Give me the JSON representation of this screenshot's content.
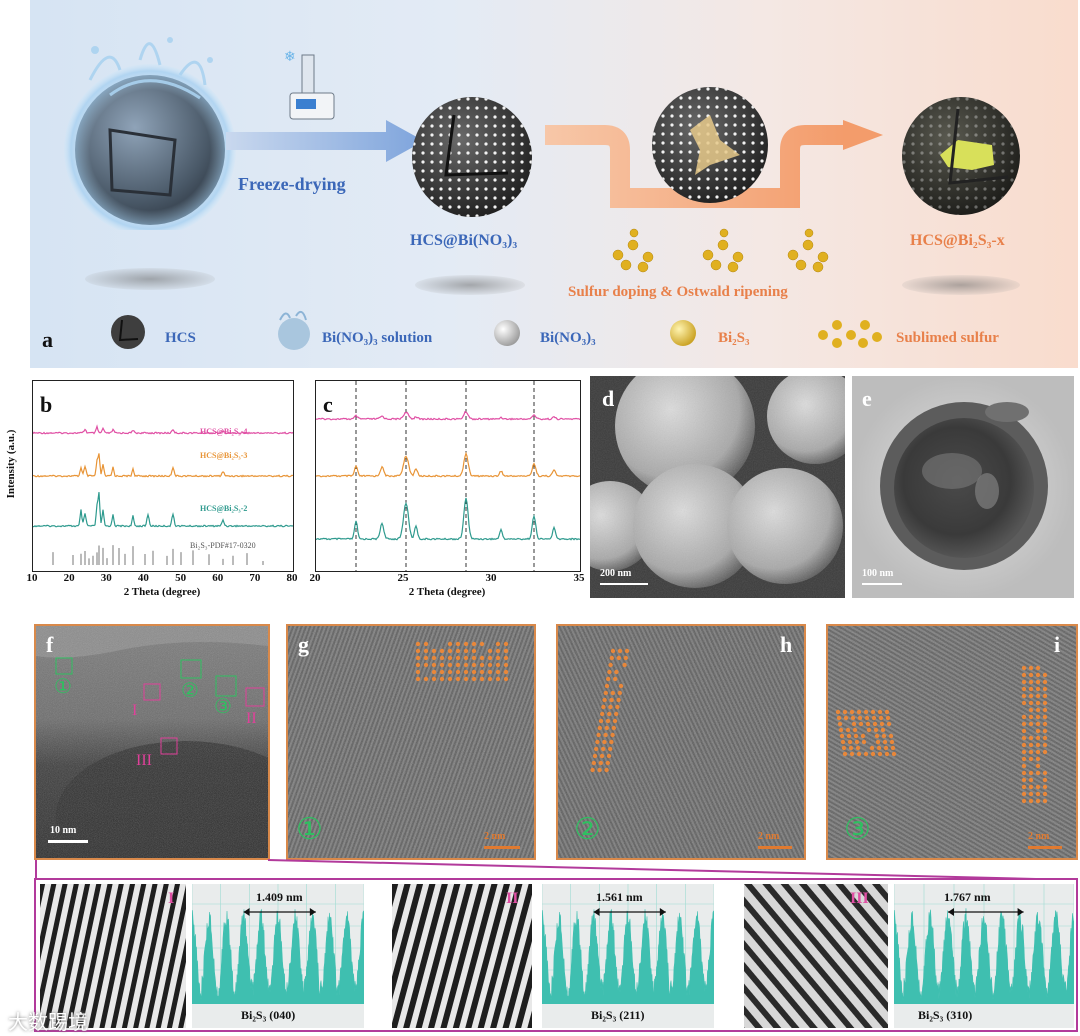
{
  "colors": {
    "pink": "#e04fa4",
    "orange": "#e89436",
    "teal": "#2e9a8e",
    "profile": "#3fbfb0",
    "frame_orange": "#d9894a",
    "frame_magenta": "#b23a9b",
    "marker_green": "#2ec060",
    "marker_magenta": "#e0409a"
  },
  "panel_a": {
    "letter": "a",
    "step1": "Freeze-drying",
    "label_bi_nitrate": "HCS@Bi(NO₃)₃",
    "step2": "Sulfur doping & Ostwald ripening",
    "label_bi2s3x": "HCS@Bi₂S₃-x",
    "legend": [
      {
        "icon": "hcs-sphere-icon",
        "label": "HCS"
      },
      {
        "icon": "solution-splash-icon",
        "label": "Bi(NO₃)₃ solution"
      },
      {
        "icon": "white-ball-icon",
        "label": "Bi(NO₃)₃"
      },
      {
        "icon": "yellow-ball-icon",
        "label": "Bi₂S₃"
      },
      {
        "icon": "sulfur-ring-icon",
        "label": "Sublimed sulfur"
      }
    ]
  },
  "panel_b": {
    "letter": "b",
    "ylabel": "Intensity (a.u.)",
    "xlabel": "2 Theta (degree)",
    "xticks": [
      "10",
      "20",
      "30",
      "40",
      "50",
      "60",
      "70",
      "80"
    ],
    "series_labels": [
      "HCS@Bi₂S₃-4",
      "HCS@Bi₂S₃-3",
      "HCS@Bi₂S₃-2",
      "Bi₂S₃-PDF#17-0320"
    ]
  },
  "panel_c": {
    "letter": "c",
    "xlabel": "2 Theta (degree)",
    "xticks": [
      "20",
      "25",
      "30",
      "35"
    ]
  },
  "panel_d": {
    "letter": "d",
    "scale": "200 nm"
  },
  "panel_e": {
    "letter": "e",
    "scale": "100 nm"
  },
  "panel_f": {
    "letter": "f",
    "scale": "10 nm",
    "marks": {
      "m1": "①",
      "m2": "②",
      "m3": "③",
      "r1": "I",
      "r2": "II",
      "r3": "III"
    }
  },
  "panel_g": {
    "letter": "g",
    "marker": "①",
    "scale": "2 nm"
  },
  "panel_h": {
    "letter": "h",
    "marker": "②",
    "scale": "2 nm"
  },
  "panel_i": {
    "letter": "i",
    "marker": "③",
    "scale": "2 nm"
  },
  "fft": [
    {
      "roman": "I",
      "spacing": "1.409 nm",
      "label": "Bi₂S₃ (040)"
    },
    {
      "roman": "II",
      "spacing": "1.561 nm",
      "label": "Bi₂S₃ (211)"
    },
    {
      "roman": "III",
      "spacing": "1.767 nm",
      "label": "Bi₂S₃ (310)"
    }
  ],
  "watermark": "大数踢境"
}
